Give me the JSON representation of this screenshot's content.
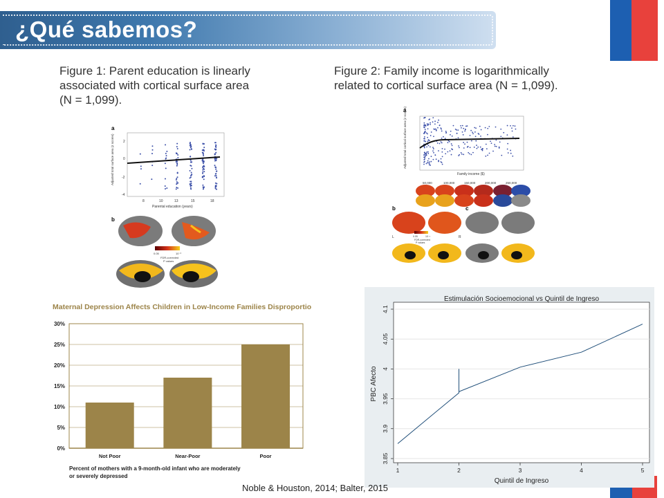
{
  "slide": {
    "title": "¿Qué sabemos?",
    "footer": "Noble & Houston, 2014; Balter, 2015"
  },
  "figure1": {
    "caption_line1": "Figure 1: Parent education is linearly",
    "caption_line2": "associated with cortical surface area",
    "caption_line3": "(N = 1,099).",
    "panel_a": "a",
    "panel_b": "b",
    "ylabel": "Adjusted total surface area (z scores)",
    "xlabel": "Parental education (years)",
    "xticks": [
      "8",
      "10",
      "13",
      "15",
      "18"
    ],
    "yticks": [
      "2",
      "0",
      "-2",
      "-4"
    ],
    "legend_low": "0.05",
    "legend_high": "10⁻³",
    "legend_label1": "FDR-corrected",
    "legend_label2": "P values"
  },
  "figure2": {
    "caption_line1": "Figure 2: Family income is logarithmically",
    "caption_line2": "related to cortical surface area (N = 1,099).",
    "panel_a": "a",
    "panel_b": "b",
    "panel_c": "c",
    "ylabel": "Adjusted total cortical surface area (z scores)",
    "xlabel": "Family income ($)",
    "xticks": [
      "50,000",
      "100,000",
      "150,000",
      "200,000",
      "250,000"
    ],
    "bracket_labels": [
      "50,000",
      "100,000",
      "150,000",
      "200,000",
      "250,000"
    ],
    "legend_low": "0.05",
    "legend_high": "10⁻³",
    "legend_label1": "FDR-corrected",
    "legend_label2": "P values",
    "hemi_L": "L",
    "hemi_R": "R"
  },
  "depression_chart": {
    "title": "Maternal Depression Affects Children in Low-Income Families Disproportionately",
    "caption_line1": "Percent of mothers with a 9-month-old infant who are moderately",
    "caption_line2": "or severely depressed",
    "bar_color": "#9c8449"
  },
  "ses_chart": {
    "title": "Estimulación Socioemocional vs Quintil de Ingreso",
    "xlabel": "Quintil de Ingreso",
    "ylabel": "PBC Afecto",
    "line_color": "#1f4e79"
  },
  "chart_data": [
    {
      "type": "bar",
      "title": "Maternal Depression Affects Children in Low-Income Families Disproportionately",
      "categories": [
        "Not Poor",
        "Near-Poor",
        "Poor"
      ],
      "values": [
        11,
        17,
        25
      ],
      "ylim": [
        0,
        30
      ],
      "yticks": [
        "0%",
        "5%",
        "10%",
        "15%",
        "20%",
        "25%",
        "30%"
      ],
      "xlabel": "Percent of mothers with a 9-month-old infant who are moderately or severely depressed",
      "grid": true
    },
    {
      "type": "line",
      "title": "Estimulación Socioemocional vs Quintil de Ingreso",
      "xlabel": "Quintil de Ingreso",
      "ylabel": "PBC Afecto",
      "x": [
        1,
        2,
        2,
        2,
        3,
        4,
        5
      ],
      "y": [
        3.875,
        3.96,
        4.0,
        3.962,
        4.003,
        4.028,
        4.075
      ],
      "xlim": [
        1,
        5
      ],
      "ylim": [
        3.85,
        4.1
      ],
      "xticks": [
        "1",
        "2",
        "3",
        "4",
        "5"
      ],
      "yticks": [
        "3.85",
        "3.9",
        "3.95",
        "4",
        "4.05",
        "4.1"
      ],
      "grid": true
    }
  ]
}
